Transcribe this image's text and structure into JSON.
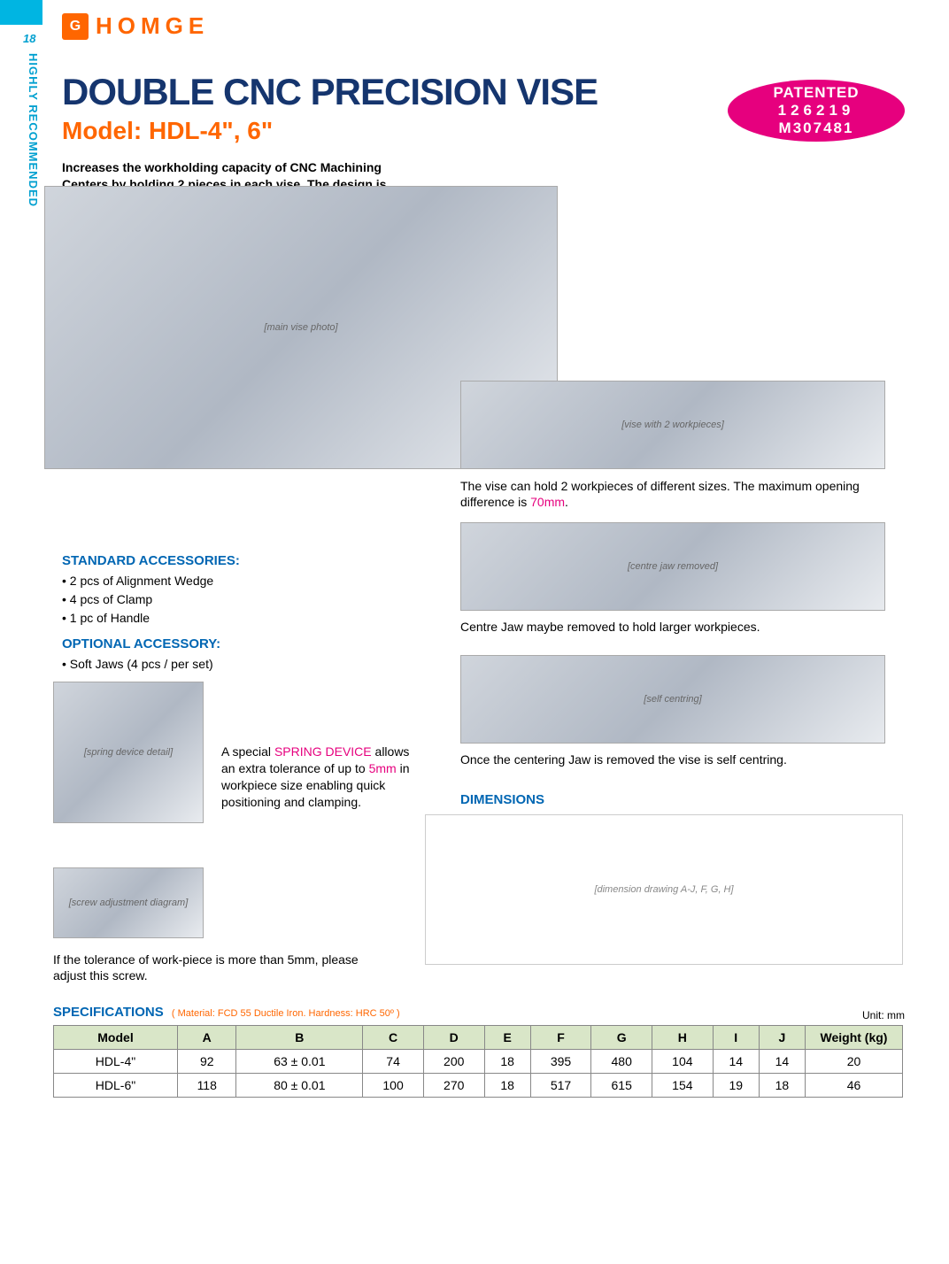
{
  "page_number": "18",
  "side_label": "HIGHLY RECOMMENDED",
  "logo": {
    "icon": "G",
    "text": "HOMGE"
  },
  "title": "DOUBLE CNC PRECISION VISE",
  "model": "Model: HDL-4\", 6\"",
  "patent": {
    "l1": "PATENTED",
    "l2": "126219",
    "l3": "M307481"
  },
  "intro": "Increases the workholding capacity of CNC Machining Centers by holding 2 pieces in each vise. The design is also compact allowing several vises to be fitted to the work table.",
  "captions": {
    "c1a": "The vise can hold 2 workpieces of different sizes. The maximum opening difference is ",
    "c1b": "70mm",
    "c1c": ".",
    "c2": "Centre Jaw maybe removed to hold larger workpieces.",
    "c3": "Once the centering Jaw is removed the vise is self centring."
  },
  "accessories": {
    "title": "STANDARD  ACCESSORIES:",
    "items": [
      "2 pcs of Alignment Wedge",
      "4 pcs of Clamp",
      "1 pc of  Handle"
    ],
    "opt_title": "OPTIONAL ACCESSORY:",
    "opt_items": [
      "Soft Jaws  (4 pcs / per set)"
    ]
  },
  "spring": {
    "t1": "A special ",
    "t2": "SPRING DEVICE",
    "t3": " allows an extra tolerance of up to ",
    "t4": "5mm",
    "t5": " in workpiece size enabling quick positioning and clamping."
  },
  "screw": "If the tolerance of work-piece is more than 5mm, please adjust this screw.",
  "dim_title": "DIMENSIONS",
  "spec": {
    "title": "SPECIFICATIONS",
    "note": "( Material: FCD 55 Ductile Iron. Hardness: HRC 50º )",
    "unit": "Unit: mm",
    "columns": [
      "Model",
      "A",
      "B",
      "C",
      "D",
      "E",
      "F",
      "G",
      "H",
      "I",
      "J",
      "Weight (kg)"
    ],
    "rows": [
      [
        "HDL-4\"",
        "92",
        "63 ± 0.01",
        "74",
        "200",
        "18",
        "395",
        "480",
        "104",
        "14",
        "14",
        "20"
      ],
      [
        "HDL-6\"",
        "118",
        "80 ± 0.01",
        "100",
        "270",
        "18",
        "517",
        "615",
        "154",
        "19",
        "18",
        "46"
      ]
    ]
  },
  "img_labels": {
    "main": "[main vise photo]",
    "sub1": "[vise with 2 workpieces]",
    "sub2": "[centre jaw removed]",
    "sub3": "[self centring]",
    "spring": "[spring device detail]",
    "screw": "[screw adjustment diagram]",
    "dim": "[dimension drawing A-J, F, G, H]"
  },
  "colors": {
    "brand_blue": "#15356e",
    "brand_orange": "#ff6600",
    "accent_pink": "#e6007e",
    "section_blue": "#0066b3",
    "tab_cyan": "#00b5e2",
    "table_header": "#d9e6c8"
  }
}
